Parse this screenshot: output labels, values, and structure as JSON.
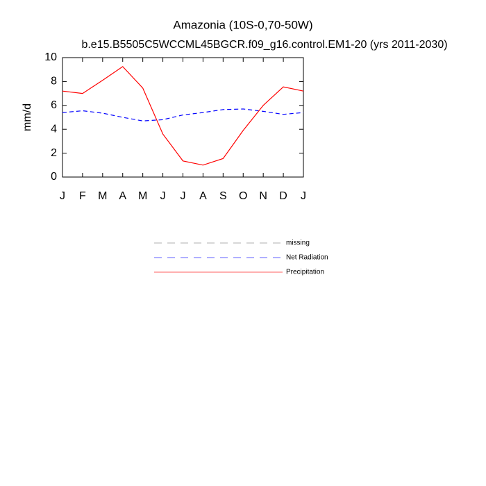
{
  "chart_data": {
    "type": "line",
    "title": "Amazonia (10S-0,70-50W)",
    "subtitle": "b.e15.B5505C5WCCML45BGCR.f09_g16.control.EM1-20 (yrs 2011-2030)",
    "y_label": "mm/d",
    "categories": [
      "J",
      "F",
      "M",
      "A",
      "M",
      "J",
      "J",
      "A",
      "S",
      "O",
      "N",
      "D",
      "J"
    ],
    "series": [
      {
        "name": "missing",
        "color": "#808080",
        "dash": true,
        "values": [
          null,
          null,
          null,
          null,
          null,
          null,
          null,
          null,
          null,
          null,
          null,
          null,
          null
        ]
      },
      {
        "name": "Net Radiation",
        "color": "#0000ff",
        "dash": true,
        "values": [
          5.4,
          5.55,
          5.35,
          5.0,
          4.7,
          4.8,
          5.2,
          5.4,
          5.65,
          5.7,
          5.5,
          5.25,
          5.4
        ]
      },
      {
        "name": "Precipitation",
        "color": "#ff0000",
        "dash": false,
        "values": [
          7.2,
          7.0,
          8.1,
          9.25,
          7.45,
          3.6,
          1.35,
          1.0,
          1.55,
          3.9,
          6.0,
          7.55,
          7.2
        ]
      }
    ],
    "ylim": [
      0,
      10
    ],
    "yticks": [
      0,
      2,
      4,
      6,
      8,
      10
    ],
    "grid": false
  }
}
